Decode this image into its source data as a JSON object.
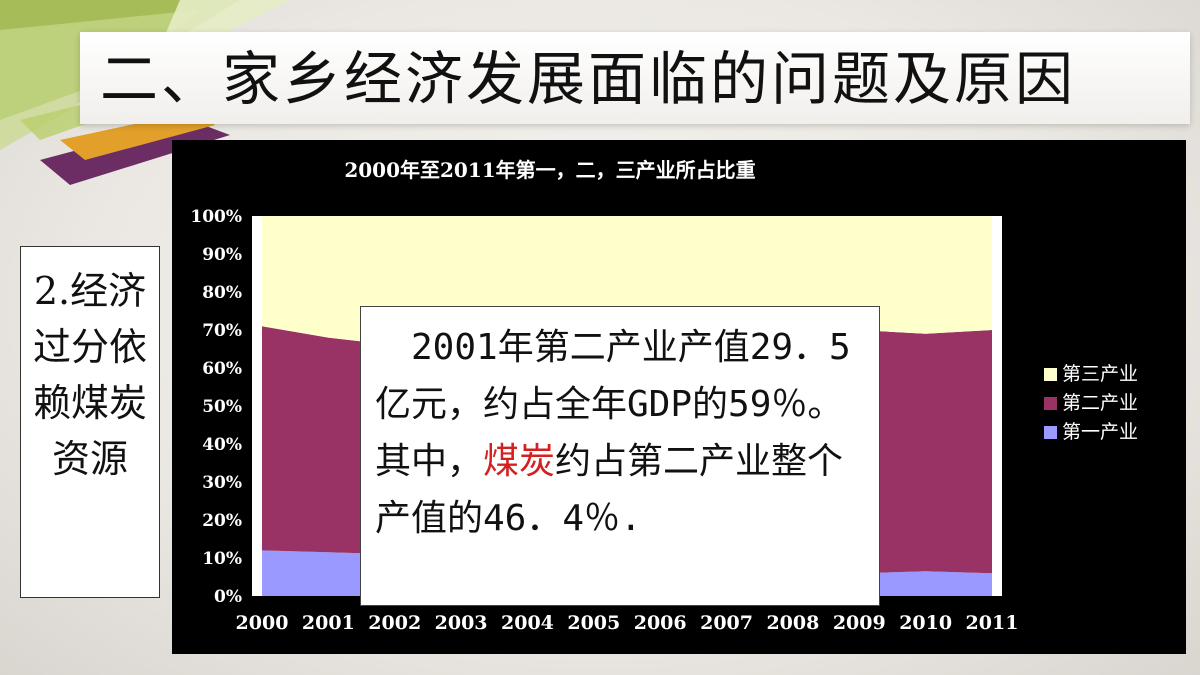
{
  "page": {
    "title": "二、家乡经济发展面临的问题及原因"
  },
  "side_note": {
    "text": "2.经济过分依赖煤炭资源"
  },
  "callout": {
    "part1": "　2001年第二产业产值29．5亿元，约占全年GDP的59％。其中，",
    "highlight": "煤炭",
    "part2": "约占第二产业整个产值的46．4％.",
    "highlight_color": "#d42020"
  },
  "chart_data": {
    "type": "area",
    "stacked": "percent",
    "title": "2000年至2011年第一，二，三产业所占比重",
    "x": [
      "2000",
      "2001",
      "2002",
      "2003",
      "2004",
      "2005",
      "2006",
      "2007",
      "2008",
      "2009",
      "2010",
      "2011"
    ],
    "yticks": [
      "0%",
      "10%",
      "20%",
      "30%",
      "40%",
      "50%",
      "60%",
      "70%",
      "80%",
      "90%",
      "100%"
    ],
    "ylim": [
      0,
      100
    ],
    "grid": false,
    "legend_position": "right",
    "series": [
      {
        "name": "第一产业",
        "color": "#9999ff",
        "values": [
          12,
          11.5,
          11,
          10,
          9,
          8.5,
          8,
          7.5,
          6.5,
          6,
          6.5,
          6
        ]
      },
      {
        "name": "第二产业",
        "color": "#993366",
        "values": [
          59,
          56.5,
          55,
          56,
          57,
          58,
          59,
          60,
          61,
          64,
          62.5,
          64
        ]
      },
      {
        "name": "第三产业",
        "color": "#ffffcc",
        "values": [
          29,
          32,
          34,
          34,
          34,
          33.5,
          33,
          32.5,
          32.5,
          30,
          31,
          30
        ]
      }
    ],
    "legend_order": [
      "第三产业",
      "第二产业",
      "第一产业"
    ],
    "colors": {
      "background": "#000000",
      "plot_background": "#ffffff",
      "text": "#ffffff"
    }
  }
}
